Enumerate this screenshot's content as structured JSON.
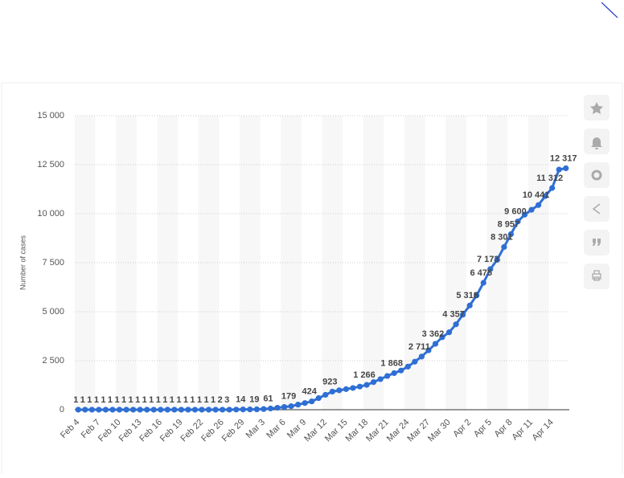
{
  "chart_data": {
    "type": "line",
    "y_label": "Number of cases",
    "categories": [
      "Feb 4",
      null,
      null,
      "Feb 7",
      null,
      null,
      "Feb 10",
      null,
      null,
      "Feb 13",
      null,
      null,
      "Feb 16",
      null,
      null,
      "Feb 19",
      null,
      null,
      "Feb 22",
      null,
      null,
      "Feb 26",
      null,
      null,
      "Feb 29",
      null,
      null,
      "Mar 3",
      null,
      null,
      "Mar 6",
      null,
      null,
      "Mar 9",
      null,
      null,
      "Mar 12",
      null,
      null,
      "Mar 15",
      null,
      null,
      "Mar 18",
      null,
      null,
      "Mar 21",
      null,
      null,
      "Mar 24",
      null,
      null,
      "Mar 27",
      null,
      null,
      "Mar 30",
      null,
      null,
      "Apr 2",
      null,
      null,
      "Apr 5",
      null,
      null,
      "Apr 8",
      null,
      null,
      "Apr 11",
      null,
      null,
      "Apr 14",
      null,
      null
    ],
    "values": [
      1,
      1,
      1,
      1,
      1,
      1,
      1,
      1,
      1,
      1,
      1,
      1,
      1,
      1,
      1,
      1,
      1,
      1,
      1,
      1,
      1,
      2,
      3,
      8,
      14,
      16,
      19,
      35,
      61,
      100,
      140,
      179,
      260,
      340,
      424,
      590,
      760,
      923,
      990,
      1050,
      1110,
      1180,
      1266,
      1410,
      1560,
      1720,
      1868,
      2000,
      2200,
      2450,
      2711,
      3030,
      3362,
      3700,
      3950,
      4357,
      4850,
      5318,
      5830,
      6475,
      7173,
      7650,
      8301,
      8957,
      9600,
      9950,
      10200,
      10441,
      10900,
      11312,
      12250,
      12317
    ],
    "value_labels": [
      "1",
      "1",
      "1",
      "1",
      "1",
      "1",
      "1",
      "1",
      "1",
      "1",
      "1",
      "1",
      "1",
      "1",
      "1",
      "1",
      "1",
      "1",
      "1",
      "1",
      "1",
      "2",
      "3",
      null,
      "14",
      null,
      "19",
      null,
      "61",
      null,
      null,
      "179",
      null,
      null,
      "424",
      null,
      null,
      "923",
      null,
      null,
      null,
      null,
      "1 266",
      null,
      null,
      null,
      "1 868",
      null,
      null,
      null,
      "2 711",
      null,
      "3 362",
      null,
      null,
      "4 357",
      null,
      "5 318",
      null,
      "6 475",
      "7 173",
      null,
      "8 301",
      "8 957",
      "9 600",
      null,
      null,
      "10 441",
      null,
      "11 312",
      null,
      "12 317"
    ],
    "color": "#2f6fd3",
    "ylim": [
      0,
      15000
    ],
    "yticks": [
      0,
      {
        "value": 2500,
        "label": "2 500"
      },
      {
        "value": 5000,
        "label": "5 000"
      },
      {
        "value": 7500,
        "label": "7 500"
      },
      {
        "value": 10000,
        "label": "10 000"
      },
      {
        "value": 12500,
        "label": "12 500"
      },
      {
        "value": 15000,
        "label": "15 000"
      }
    ],
    "grid": true
  }
}
